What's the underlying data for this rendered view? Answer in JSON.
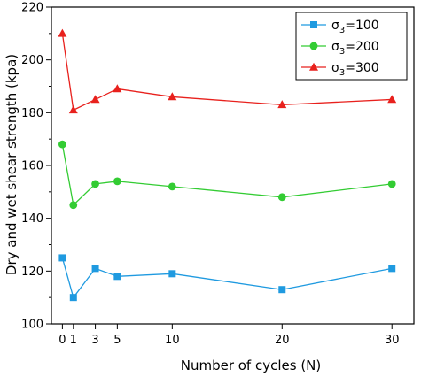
{
  "chart_data": {
    "type": "line",
    "title": "",
    "xlabel": "Number of cycles (N)",
    "ylabel": "Dry and wet shear strength (kpa)",
    "xlim": [
      -1,
      32
    ],
    "ylim": [
      100,
      220
    ],
    "xticks": [
      0,
      1,
      3,
      5,
      10,
      20,
      30
    ],
    "yticks": [
      100,
      120,
      140,
      160,
      180,
      200,
      220
    ],
    "x": [
      0,
      1,
      3,
      5,
      10,
      20,
      30
    ],
    "grid": false,
    "legend_position": "top-right",
    "series": [
      {
        "name_base": "σ",
        "name_sub": "3",
        "name_value": "=100",
        "color": "#1f9ae0",
        "marker": "square",
        "values": [
          125,
          110,
          121,
          118,
          119,
          113,
          121
        ]
      },
      {
        "name_base": "σ",
        "name_sub": "3",
        "name_value": "=200",
        "color": "#33cc33",
        "marker": "circle",
        "values": [
          168,
          145,
          153,
          154,
          152,
          148,
          153
        ]
      },
      {
        "name_base": "σ",
        "name_sub": "3",
        "name_value": "=300",
        "color": "#e8211d",
        "marker": "triangle",
        "values": [
          210,
          181,
          185,
          189,
          186,
          183,
          185
        ]
      }
    ]
  }
}
